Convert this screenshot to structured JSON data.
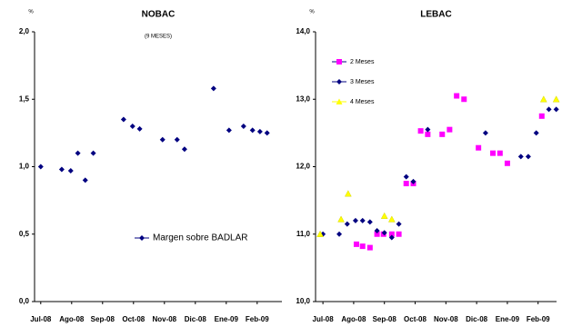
{
  "chart_data": [
    {
      "type": "scatter",
      "title": "NOBAC",
      "subtitle": "(9 MESES)",
      "y_unit": "%",
      "xlim": [
        -0.2,
        7.8
      ],
      "ylim": [
        0,
        2
      ],
      "xticks": [
        {
          "value": 0,
          "label": "Jul-08"
        },
        {
          "value": 1,
          "label": "Ago-08"
        },
        {
          "value": 2,
          "label": "Sep-08"
        },
        {
          "value": 3,
          "label": "Oct-08"
        },
        {
          "value": 4,
          "label": "Nov-08"
        },
        {
          "value": 5,
          "label": "Dic-08"
        },
        {
          "value": 6,
          "label": "Ene-09"
        },
        {
          "value": 7,
          "label": "Feb-09"
        }
      ],
      "yticks": [
        {
          "value": 0,
          "label": "0,0"
        },
        {
          "value": 0.5,
          "label": "0,5"
        },
        {
          "value": 1,
          "label": "1,0"
        },
        {
          "value": 1.5,
          "label": "1,5"
        },
        {
          "value": 2,
          "label": "2,0"
        }
      ],
      "legend_position": "center right",
      "series": [
        {
          "name": "Margen sobre BADLAR",
          "color": "#000080",
          "marker": "diamond",
          "x": [
            0,
            0.68,
            0.97,
            1.2,
            1.44,
            1.7,
            2.68,
            2.97,
            3.2,
            3.94,
            4.41,
            4.65,
            5.59,
            6.09,
            6.56,
            6.85,
            7.09,
            7.32
          ],
          "values": [
            1.0,
            0.98,
            0.97,
            1.1,
            0.9,
            1.1,
            1.35,
            1.3,
            1.28,
            1.2,
            1.2,
            1.13,
            1.58,
            1.27,
            1.3,
            1.27,
            1.26,
            1.25
          ]
        }
      ]
    },
    {
      "type": "scatter",
      "title": "LEBAC",
      "y_unit": "%",
      "xlim": [
        -0.24,
        7.6
      ],
      "ylim": [
        10,
        14
      ],
      "xticks": [
        {
          "value": 0,
          "label": "Jul-08"
        },
        {
          "value": 1,
          "label": "Ago-08"
        },
        {
          "value": 2,
          "label": "Sep-08"
        },
        {
          "value": 3,
          "label": "Oct-08"
        },
        {
          "value": 4,
          "label": "Nov-08"
        },
        {
          "value": 5,
          "label": "Dic-08"
        },
        {
          "value": 6,
          "label": "Ene-09"
        },
        {
          "value": 7,
          "label": "Feb-09"
        }
      ],
      "yticks": [
        {
          "value": 10,
          "label": "10,0"
        },
        {
          "value": 11,
          "label": "11,0"
        },
        {
          "value": 12,
          "label": "12,0"
        },
        {
          "value": 13,
          "label": "13,0"
        },
        {
          "value": 14,
          "label": "14,0"
        }
      ],
      "legend_position": "upper left",
      "series": [
        {
          "name": "2 Meses",
          "color": "#ff00ff",
          "marker": "square",
          "x": [
            1.09,
            1.29,
            1.53,
            1.76,
            1.97,
            2.24,
            2.47,
            2.71,
            2.94,
            3.18,
            3.41,
            3.88,
            4.12,
            4.35,
            4.59,
            5.06,
            5.53,
            5.76,
            6.0,
            7.12
          ],
          "values": [
            10.85,
            10.82,
            10.8,
            11.0,
            11.0,
            11.0,
            11.0,
            11.75,
            11.75,
            12.53,
            12.48,
            12.48,
            12.55,
            13.05,
            13.0,
            12.28,
            12.2,
            12.2,
            12.05,
            12.75
          ]
        },
        {
          "name": "3 Meses",
          "color": "#000080",
          "marker": "diamond",
          "x": [
            0,
            0.53,
            0.79,
            1.06,
            1.29,
            1.53,
            1.76,
            2.0,
            2.24,
            2.47,
            2.71,
            2.94,
            3.41,
            5.29,
            6.44,
            6.68,
            6.94,
            7.35,
            7.59
          ],
          "values": [
            11.0,
            11.0,
            11.15,
            11.2,
            11.2,
            11.18,
            11.05,
            11.02,
            10.95,
            11.15,
            11.85,
            11.78,
            12.55,
            12.5,
            12.15,
            12.15,
            12.5,
            12.85,
            12.85
          ]
        },
        {
          "name": "4 Meses",
          "color": "#ffff00",
          "marker": "triangle",
          "x": [
            -0.09,
            0.59,
            0.82,
            2.0,
            2.24,
            7.18,
            7.59
          ],
          "values": [
            11.0,
            11.22,
            11.6,
            11.27,
            11.22,
            13.0,
            13.0
          ]
        }
      ]
    }
  ]
}
